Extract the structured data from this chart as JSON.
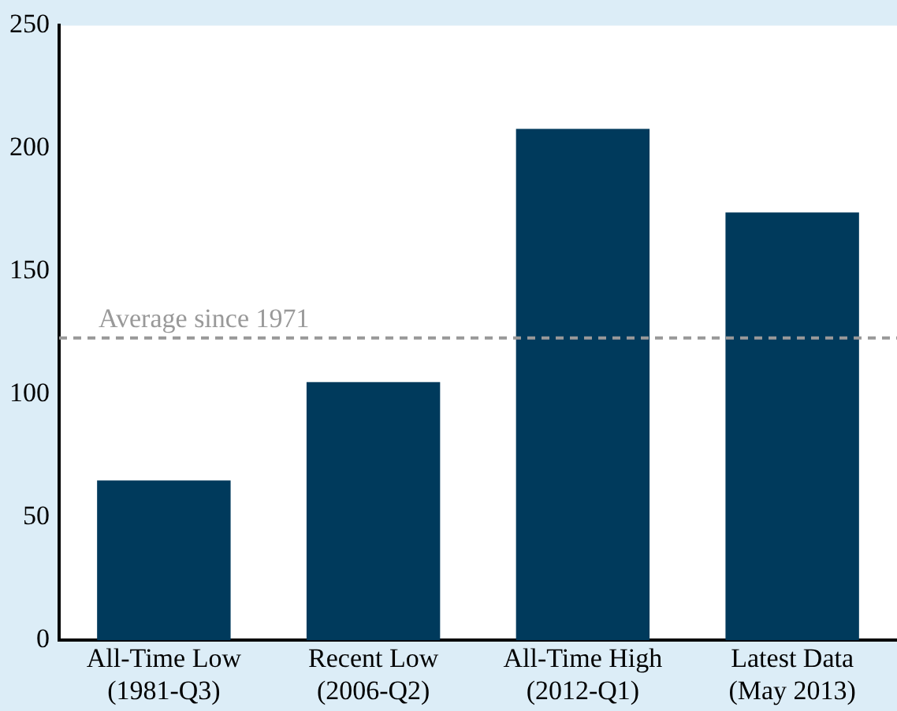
{
  "chart_data": {
    "type": "bar",
    "categories": [
      "All-Time Low\n(1981-Q3)",
      "Recent Low\n(2006-Q2)",
      "All-Time High\n(2012-Q1)",
      "Latest Data\n(May 2013)"
    ],
    "values": [
      65,
      105,
      208,
      174
    ],
    "color": "#003a5c",
    "ylim": [
      0,
      250
    ],
    "yticks": [
      0,
      50,
      100,
      150,
      200,
      250
    ],
    "grid": false,
    "legend": false,
    "ref_lines": [
      {
        "axis": "y",
        "value": 123,
        "label": "Average since 1971",
        "color": "#999999",
        "line_style": "dashed"
      }
    ]
  }
}
